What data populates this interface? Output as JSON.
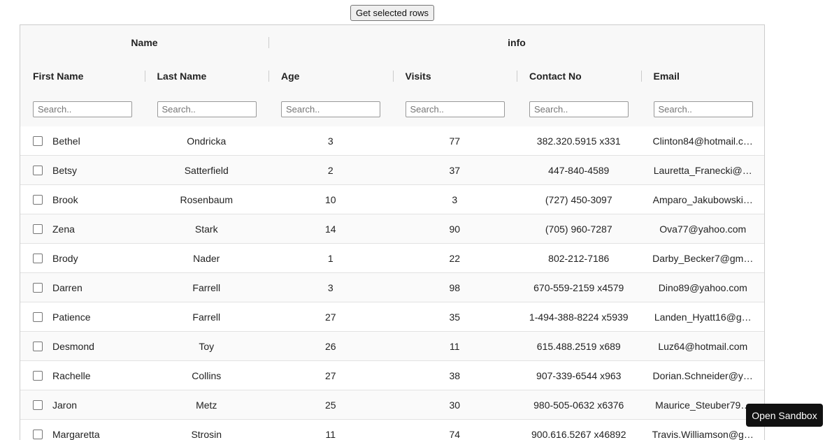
{
  "button": "Get selected rows",
  "table": {
    "groups": [
      "Name",
      "info"
    ],
    "columns": [
      "First Name",
      "Last Name",
      "Age",
      "Visits",
      "Contact No",
      "Email"
    ],
    "filter_placeholder": "Search..",
    "rows": [
      [
        "Bethel",
        "Ondricka",
        3,
        77,
        "382.320.5915 x331",
        "Clinton84@hotmail.c…"
      ],
      [
        "Betsy",
        "Satterfield",
        2,
        37,
        "447-840-4589",
        "Lauretta_Franecki@…"
      ],
      [
        "Brook",
        "Rosenbaum",
        10,
        3,
        "(727) 450-3097",
        "Amparo_Jakubowski…"
      ],
      [
        "Zena",
        "Stark",
        14,
        90,
        "(705) 960-7287",
        "Ova77@yahoo.com"
      ],
      [
        "Brody",
        "Nader",
        1,
        22,
        "802-212-7186",
        "Darby_Becker7@gm…"
      ],
      [
        "Darren",
        "Farrell",
        3,
        98,
        "670-559-2159 x4579",
        "Dino89@yahoo.com"
      ],
      [
        "Patience",
        "Farrell",
        27,
        35,
        "1-494-388-8224 x5939",
        "Landen_Hyatt16@g…"
      ],
      [
        "Desmond",
        "Toy",
        26,
        11,
        "615.488.2519 x689",
        "Luz64@hotmail.com"
      ],
      [
        "Rachelle",
        "Collins",
        27,
        38,
        "907-339-6544 x963",
        "Dorian.Schneider@y…"
      ],
      [
        "Jaron",
        "Metz",
        25,
        30,
        "980-505-0632 x6376",
        "Maurice_Steuber79…"
      ],
      [
        "Margaretta",
        "Strosin",
        11,
        74,
        "900.616.5267 x46892",
        "Travis.Williamson@g…"
      ]
    ]
  },
  "sandbox_button": "Open Sandbox"
}
